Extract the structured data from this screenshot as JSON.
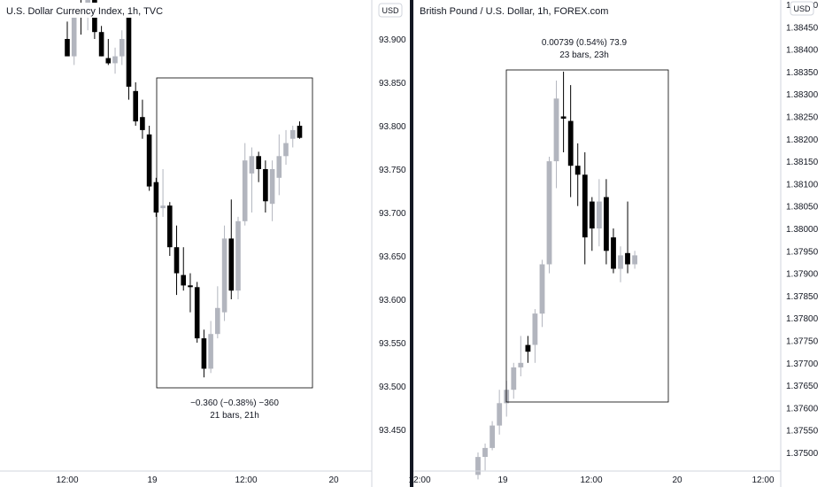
{
  "chart_data": [
    {
      "type": "candlestick",
      "title": "U.S. Dollar Currency Index, 1h, TVC",
      "currency": "USD",
      "ylim": [
        93.4,
        93.92
      ],
      "y_ticks": [
        "93.900",
        "93.850",
        "93.800",
        "93.750",
        "93.700",
        "93.650",
        "93.600",
        "93.550",
        "93.500",
        "93.450"
      ],
      "x_ticks": [
        "12:00",
        "19",
        "12:00",
        "20"
      ],
      "measurement": {
        "line1": "−0.360 (−0.38%) −360",
        "line2": "21 bars, 21h"
      },
      "colors": {
        "up": "#b2b5be",
        "down": "#000000"
      },
      "candles": [
        {
          "o": 93.9,
          "h": 93.92,
          "l": 93.885,
          "c": 93.88
        },
        {
          "o": 93.88,
          "h": 93.93,
          "l": 93.87,
          "c": 93.925
        },
        {
          "o": 93.93,
          "h": 93.95,
          "l": 93.905,
          "c": 93.925
        },
        {
          "o": 93.925,
          "h": 93.96,
          "l": 93.91,
          "c": 93.945
        },
        {
          "o": 93.945,
          "h": 93.96,
          "l": 93.9,
          "c": 93.908
        },
        {
          "o": 93.908,
          "h": 93.915,
          "l": 93.88,
          "c": 93.88
        },
        {
          "o": 93.878,
          "h": 93.9,
          "l": 93.87,
          "c": 93.872
        },
        {
          "o": 93.872,
          "h": 93.89,
          "l": 93.86,
          "c": 93.88
        },
        {
          "o": 93.88,
          "h": 93.91,
          "l": 93.87,
          "c": 93.9
        },
        {
          "o": 93.925,
          "h": 93.94,
          "l": 93.83,
          "c": 93.845
        },
        {
          "o": 93.84,
          "h": 93.85,
          "l": 93.8,
          "c": 93.805
        },
        {
          "o": 93.81,
          "h": 93.83,
          "l": 93.785,
          "c": 93.795
        },
        {
          "o": 93.79,
          "h": 93.8,
          "l": 93.725,
          "c": 93.73
        },
        {
          "o": 93.735,
          "h": 93.74,
          "l": 93.695,
          "c": 93.7
        },
        {
          "o": 93.705,
          "h": 93.75,
          "l": 93.695,
          "c": 93.708
        },
        {
          "o": 93.708,
          "h": 93.712,
          "l": 93.65,
          "c": 93.66
        },
        {
          "o": 93.66,
          "h": 93.685,
          "l": 93.605,
          "c": 93.63
        },
        {
          "o": 93.628,
          "h": 93.66,
          "l": 93.61,
          "c": 93.616
        },
        {
          "o": 93.616,
          "h": 93.63,
          "l": 93.585,
          "c": 93.614
        },
        {
          "o": 93.614,
          "h": 93.62,
          "l": 93.55,
          "c": 93.555
        },
        {
          "o": 93.555,
          "h": 93.565,
          "l": 93.51,
          "c": 93.52
        },
        {
          "o": 93.52,
          "h": 93.575,
          "l": 93.515,
          "c": 93.56
        },
        {
          "o": 93.56,
          "h": 93.615,
          "l": 93.555,
          "c": 93.59
        },
        {
          "o": 93.585,
          "h": 93.685,
          "l": 93.575,
          "c": 93.67
        },
        {
          "o": 93.67,
          "h": 93.715,
          "l": 93.6,
          "c": 93.61
        },
        {
          "o": 93.61,
          "h": 93.695,
          "l": 93.6,
          "c": 93.69
        },
        {
          "o": 93.69,
          "h": 93.78,
          "l": 93.685,
          "c": 93.76
        },
        {
          "o": 93.745,
          "h": 93.775,
          "l": 93.7,
          "c": 93.765
        },
        {
          "o": 93.765,
          "h": 93.77,
          "l": 93.735,
          "c": 93.75
        },
        {
          "o": 93.75,
          "h": 93.76,
          "l": 93.7,
          "c": 93.713
        },
        {
          "o": 93.71,
          "h": 93.76,
          "l": 93.69,
          "c": 93.75
        },
        {
          "o": 93.74,
          "h": 93.79,
          "l": 93.72,
          "c": 93.765
        },
        {
          "o": 93.765,
          "h": 93.795,
          "l": 93.755,
          "c": 93.78
        },
        {
          "o": 93.785,
          "h": 93.8,
          "l": 93.775,
          "c": 93.795
        },
        {
          "o": 93.8,
          "h": 93.805,
          "l": 93.785,
          "c": 93.786
        }
      ]
    },
    {
      "type": "candlestick",
      "title": "British Pound / U.S. Dollar, 1h, FOREX.com",
      "currency": "USD",
      "ylim": [
        1.37475,
        1.38525
      ],
      "y_ticks": [
        "1.38500",
        "1.38450",
        "1.38400",
        "1.38350",
        "1.38300",
        "1.38250",
        "1.38200",
        "1.38150",
        "1.38100",
        "1.38050",
        "1.38000",
        "1.37950",
        "1.37900",
        "1.37850",
        "1.37800",
        "1.37750",
        "1.37700",
        "1.37650",
        "1.37600",
        "1.37550",
        "1.37500"
      ],
      "x_ticks": [
        "12:00",
        "19",
        "12:00",
        "20",
        "12:00"
      ],
      "measurement": {
        "line1": "0.00739 (0.54%) 73.9",
        "line2": "23 bars, 23h"
      },
      "colors": {
        "up": "#b2b5be",
        "down": "#000000"
      },
      "candles": [
        {
          "o": 1.3745,
          "h": 1.375,
          "l": 1.3744,
          "c": 1.3749
        },
        {
          "o": 1.3749,
          "h": 1.3752,
          "l": 1.3746,
          "c": 1.3751
        },
        {
          "o": 1.3751,
          "h": 1.3757,
          "l": 1.37505,
          "c": 1.3756
        },
        {
          "o": 1.3756,
          "h": 1.3764,
          "l": 1.3754,
          "c": 1.3761
        },
        {
          "o": 1.3761,
          "h": 1.3766,
          "l": 1.3758,
          "c": 1.3764
        },
        {
          "o": 1.3764,
          "h": 1.377,
          "l": 1.3762,
          "c": 1.3769
        },
        {
          "o": 1.3769,
          "h": 1.3776,
          "l": 1.3767,
          "c": 1.377
        },
        {
          "o": 1.3774,
          "h": 1.3776,
          "l": 1.377,
          "c": 1.37725
        },
        {
          "o": 1.3774,
          "h": 1.3782,
          "l": 1.377,
          "c": 1.3781
        },
        {
          "o": 1.3781,
          "h": 1.3793,
          "l": 1.3778,
          "c": 1.3792
        },
        {
          "o": 1.3792,
          "h": 1.3816,
          "l": 1.379,
          "c": 1.3815
        },
        {
          "o": 1.3815,
          "h": 1.3833,
          "l": 1.3809,
          "c": 1.3829
        },
        {
          "o": 1.3825,
          "h": 1.3835,
          "l": 1.3817,
          "c": 1.38245
        },
        {
          "o": 1.3824,
          "h": 1.3832,
          "l": 1.3807,
          "c": 1.3814
        },
        {
          "o": 1.3814,
          "h": 1.3819,
          "l": 1.3805,
          "c": 1.3812
        },
        {
          "o": 1.3812,
          "h": 1.3817,
          "l": 1.3792,
          "c": 1.3798
        },
        {
          "o": 1.3806,
          "h": 1.3807,
          "l": 1.3795,
          "c": 1.38
        },
        {
          "o": 1.38,
          "h": 1.3811,
          "l": 1.3796,
          "c": 1.3806
        },
        {
          "o": 1.3807,
          "h": 1.3811,
          "l": 1.3792,
          "c": 1.3795
        },
        {
          "o": 1.3798,
          "h": 1.38,
          "l": 1.379,
          "c": 1.3791
        },
        {
          "o": 1.3791,
          "h": 1.3796,
          "l": 1.3788,
          "c": 1.3794
        },
        {
          "o": 1.37945,
          "h": 1.3806,
          "l": 1.379,
          "c": 1.3792
        },
        {
          "o": 1.3792,
          "h": 1.3795,
          "l": 1.3791,
          "c": 1.3794
        }
      ]
    }
  ]
}
